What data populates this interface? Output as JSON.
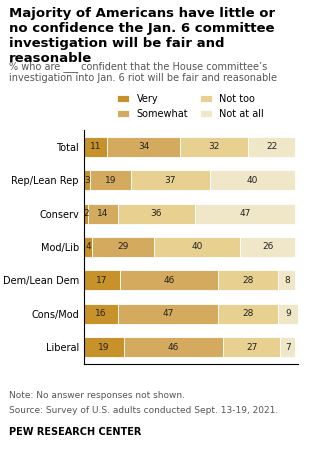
{
  "chart_data": {
    "type": "bar",
    "orientation": "horizontal",
    "stacked": true,
    "data_labels": true,
    "tick_labels": "y",
    "title": "Majority of Americans have little or\nno confidence the Jan. 6 committee\ninvestigation will be fair and reasonable",
    "subtitle": "% who are ___ confident that the House committee’s\ninvestigation into Jan. 6 riot will be fair and reasonable",
    "categories": [
      "Total",
      "Rep/Lean Rep",
      "Conserv",
      "Mod/Lib",
      "Dem/Lean Dem",
      "Cons/Mod",
      "Liberal"
    ],
    "series": [
      {
        "name": "Very",
        "color": "#C8922A",
        "values": [
          11,
          3,
          2,
          4,
          17,
          16,
          19
        ]
      },
      {
        "name": "Somewhat",
        "color": "#D4AA5F",
        "values": [
          34,
          19,
          14,
          29,
          46,
          47,
          46
        ]
      },
      {
        "name": "Not too",
        "color": "#E8D190",
        "values": [
          32,
          37,
          36,
          40,
          28,
          28,
          27
        ]
      },
      {
        "name": "Not at all",
        "color": "#F0E6C8",
        "values": [
          22,
          40,
          47,
          26,
          8,
          9,
          7
        ]
      }
    ],
    "xlim": [
      0,
      100
    ],
    "legend": "lower center",
    "note": "Note: No answer responses not shown.",
    "source": "Source: Survey of U.S. adults conducted Sept. 13-19, 2021.",
    "credit": "PEW RESEARCH CENTER"
  }
}
